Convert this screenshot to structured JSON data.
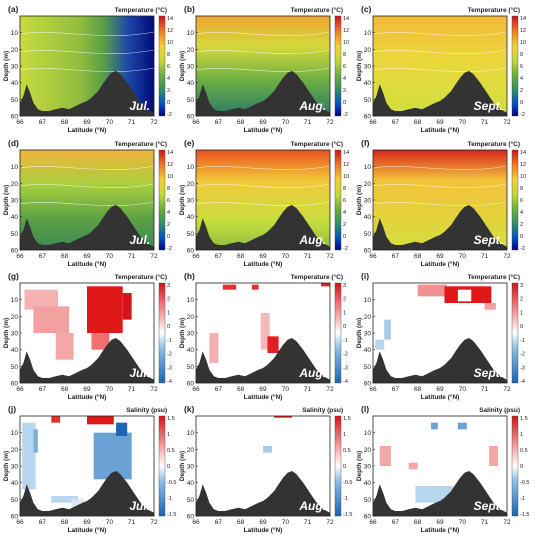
{
  "figure": {
    "x_axis_label": "Latitude (°N)",
    "y_axis_label": "Depth (m)",
    "lat_ticks": [
      "66",
      "67",
      "68",
      "69",
      "70",
      "71",
      "72"
    ],
    "depth_ticks": [
      "10",
      "20",
      "30",
      "40",
      "50",
      "60"
    ]
  },
  "rows": [
    {
      "colorbar_title": "Temperature (°C)",
      "colorbar_ticks": [
        "14",
        "12",
        "10",
        "8",
        "6",
        "4",
        "2",
        "0",
        "-2"
      ],
      "colorbar_type": "jet",
      "panels": [
        {
          "label": "(a)",
          "month": "Jul.",
          "fill": "absolute_temperature"
        },
        {
          "label": "(b)",
          "month": "Aug.",
          "fill": "absolute_temperature"
        },
        {
          "label": "(c)",
          "month": "Sept.",
          "fill": "absolute_temperature"
        }
      ]
    },
    {
      "colorbar_title": "Temperature (°C)",
      "colorbar_ticks": [
        "14",
        "12",
        "10",
        "8",
        "6",
        "4",
        "2",
        "0",
        "-2"
      ],
      "colorbar_type": "jet",
      "panels": [
        {
          "label": "(d)",
          "month": "Jul.",
          "fill": "absolute_temperature"
        },
        {
          "label": "(e)",
          "month": "Aug.",
          "fill": "absolute_temperature"
        },
        {
          "label": "(f)",
          "month": "Sept.",
          "fill": "absolute_temperature"
        }
      ]
    },
    {
      "colorbar_title": "Temperature (°C)",
      "colorbar_ticks": [
        "3",
        "2",
        "1",
        "0",
        "-1",
        "-2",
        "-3",
        "-4"
      ],
      "colorbar_type": "diverging",
      "panels": [
        {
          "label": "(g)",
          "month": "Jul.",
          "fill": "anomaly"
        },
        {
          "label": "(h)",
          "month": "Aug.",
          "fill": "anomaly"
        },
        {
          "label": "(i)",
          "month": "Sept.",
          "fill": "anomaly"
        }
      ]
    },
    {
      "colorbar_title": "Salinity (psu)",
      "colorbar_ticks": [
        "1.5",
        "1",
        "0.5",
        "0",
        "-0.5",
        "-1",
        "-1.5"
      ],
      "colorbar_type": "diverging",
      "panels": [
        {
          "label": "(j)",
          "month": "Jul.",
          "fill": "anomaly"
        },
        {
          "label": "(k)",
          "month": "Aug.",
          "fill": "anomaly"
        },
        {
          "label": "(l)",
          "month": "Sept.",
          "fill": "anomaly"
        }
      ]
    }
  ],
  "chart_data": {
    "type": "heatmap",
    "xlabel": "Latitude (°N)",
    "ylabel": "Depth (m)",
    "xlim": [
      66,
      72
    ],
    "ylim": [
      60,
      0
    ],
    "panels": [
      {
        "label": "(a)",
        "variable": "Temperature (°C)",
        "month": "Jul.",
        "clim": [
          -2,
          14
        ]
      },
      {
        "label": "(b)",
        "variable": "Temperature (°C)",
        "month": "Aug.",
        "clim": [
          -2,
          14
        ]
      },
      {
        "label": "(c)",
        "variable": "Temperature (°C)",
        "month": "Sept.",
        "clim": [
          -2,
          14
        ]
      },
      {
        "label": "(d)",
        "variable": "Temperature (°C)",
        "month": "Jul.",
        "clim": [
          -2,
          14
        ]
      },
      {
        "label": "(e)",
        "variable": "Temperature (°C)",
        "month": "Aug.",
        "clim": [
          -2,
          14
        ]
      },
      {
        "label": "(f)",
        "variable": "Temperature (°C)",
        "month": "Sept.",
        "clim": [
          -2,
          14
        ]
      },
      {
        "label": "(g)",
        "variable": "Temperature (°C)",
        "month": "Jul.",
        "clim": [
          -4,
          3
        ]
      },
      {
        "label": "(h)",
        "variable": "Temperature (°C)",
        "month": "Aug.",
        "clim": [
          -4,
          3
        ]
      },
      {
        "label": "(i)",
        "variable": "Temperature (°C)",
        "month": "Sept.",
        "clim": [
          -4,
          3
        ]
      },
      {
        "label": "(j)",
        "variable": "Salinity (psu)",
        "month": "Jul.",
        "clim": [
          -1.5,
          1.5
        ]
      },
      {
        "label": "(k)",
        "variable": "Salinity (psu)",
        "month": "Aug.",
        "clim": [
          -1.5,
          1.5
        ]
      },
      {
        "label": "(l)",
        "variable": "Salinity (psu)",
        "month": "Sept.",
        "clim": [
          -1.5,
          1.5
        ]
      }
    ],
    "bathymetry_profile": {
      "latitude": [
        66,
        66.15,
        66.3,
        66.45,
        66.6,
        66.8,
        67.0,
        67.3,
        67.6,
        67.9,
        68.2,
        68.5,
        68.8,
        69.0,
        69.2,
        69.5,
        69.7,
        69.9,
        70.1,
        70.3,
        70.5,
        70.8,
        71.1,
        71.4,
        71.7,
        72
      ],
      "depth": [
        52,
        48,
        41,
        46,
        52,
        56,
        57,
        57,
        56,
        55,
        56,
        54,
        52,
        51,
        49,
        45,
        41,
        37,
        34,
        33,
        35,
        40,
        46,
        52,
        56,
        58
      ]
    }
  }
}
